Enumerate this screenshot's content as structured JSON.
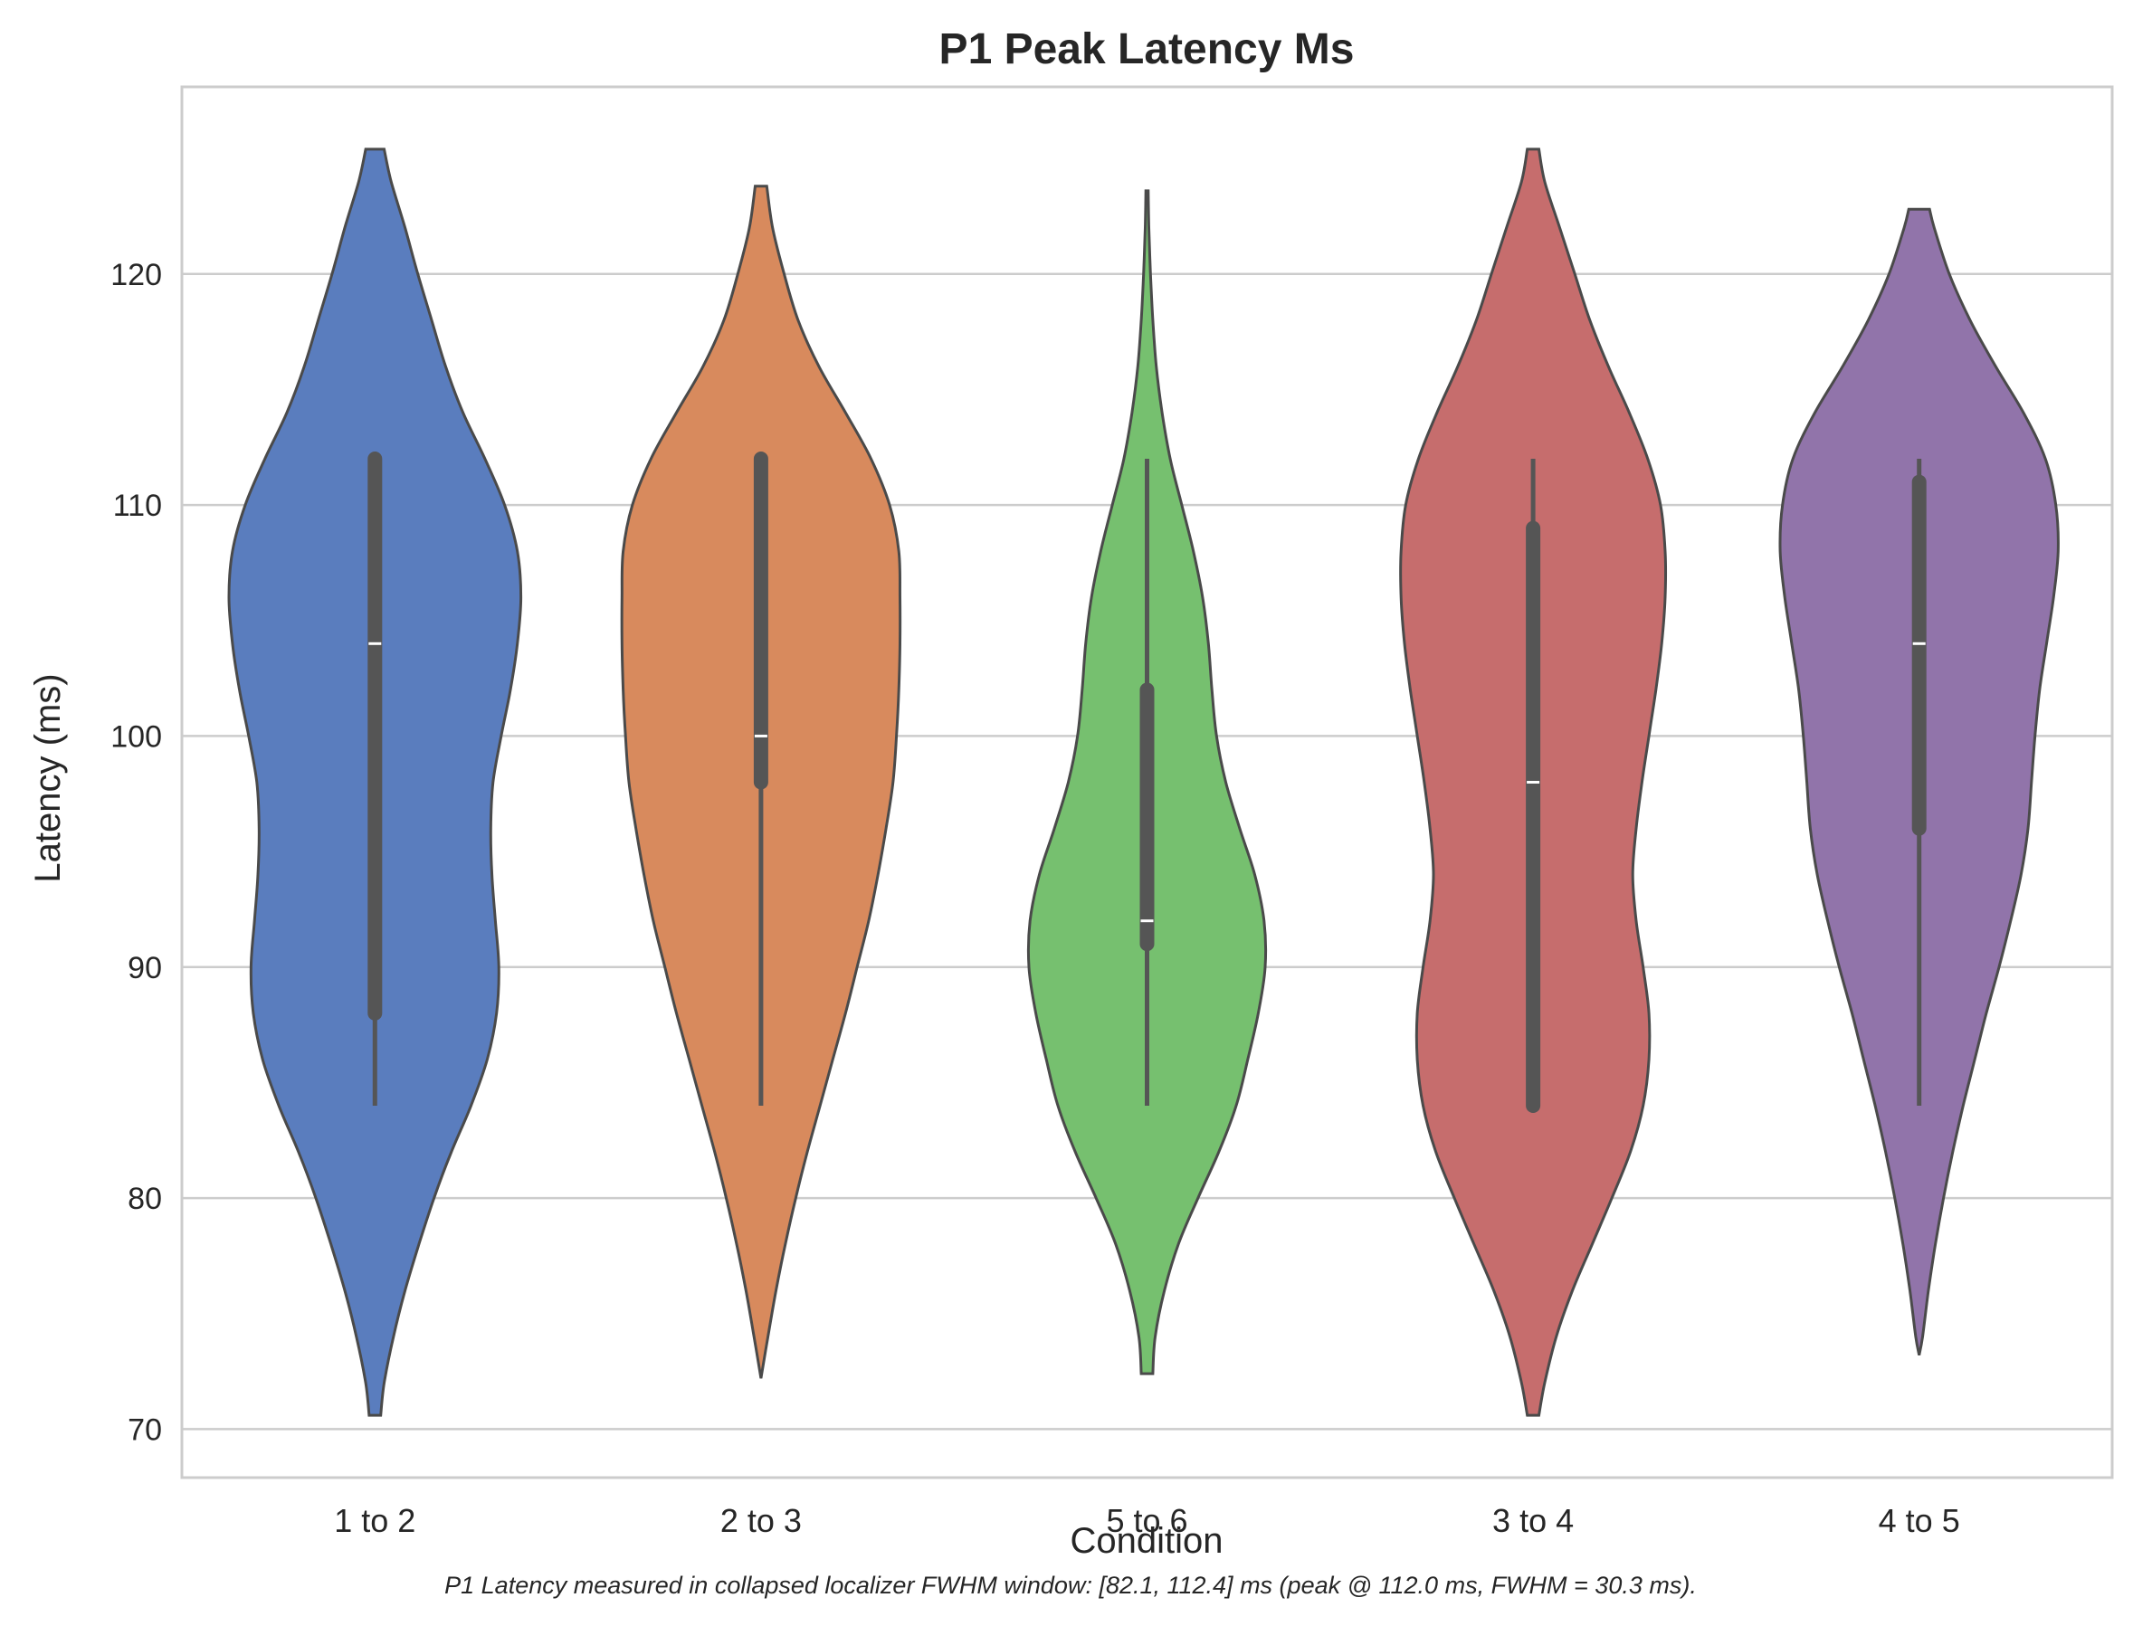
{
  "chart_data": {
    "type": "violin",
    "title": "P1 Peak Latency Ms",
    "xlabel": "Condition",
    "ylabel": "Latency (ms)",
    "caption": "P1 Latency measured in collapsed localizer FWHM window: [82.1, 112.4] ms (peak @ 112.0 ms, FWHM = 30.3 ms).",
    "ylim": [
      67.9,
      128.1
    ],
    "yticks": [
      70,
      80,
      90,
      100,
      110,
      120
    ],
    "grid": true,
    "categories": [
      "1 to 2",
      "2 to 3",
      "5 to 6",
      "3 to 4",
      "4 to 5"
    ],
    "colors": [
      "#5a7dbe",
      "#d88a5d",
      "#76c06f",
      "#c66d6d",
      "#9174aa"
    ],
    "edge_color": "#4a4a4a",
    "box_color": "#555555",
    "median_color": "#ffffff",
    "violins": [
      {
        "category": "1 to 2",
        "min": 84,
        "q1": 88,
        "median": 104,
        "q3": 112,
        "max": 112,
        "range": [
          70.6,
          125.4
        ],
        "density": [
          [
            70.6,
            0.025
          ],
          [
            72,
            0.04
          ],
          [
            74,
            0.08
          ],
          [
            76,
            0.13
          ],
          [
            78,
            0.19
          ],
          [
            80,
            0.255
          ],
          [
            82,
            0.33
          ],
          [
            84,
            0.415
          ],
          [
            86,
            0.485
          ],
          [
            88,
            0.525
          ],
          [
            90,
            0.535
          ],
          [
            92,
            0.52
          ],
          [
            94,
            0.505
          ],
          [
            96,
            0.5
          ],
          [
            98,
            0.51
          ],
          [
            100,
            0.545
          ],
          [
            102,
            0.585
          ],
          [
            104,
            0.615
          ],
          [
            106,
            0.63
          ],
          [
            108,
            0.615
          ],
          [
            110,
            0.56
          ],
          [
            112,
            0.475
          ],
          [
            114,
            0.38
          ],
          [
            116,
            0.305
          ],
          [
            118,
            0.245
          ],
          [
            120,
            0.185
          ],
          [
            122,
            0.13
          ],
          [
            124,
            0.07
          ],
          [
            125.4,
            0.04
          ]
        ]
      },
      {
        "category": "2 to 3",
        "min": 84,
        "q1": 98,
        "median": 100,
        "q3": 112,
        "max": 112,
        "range": [
          72.2,
          123.8
        ],
        "density": [
          [
            72.2,
            0.0
          ],
          [
            74,
            0.03
          ],
          [
            76,
            0.065
          ],
          [
            78,
            0.105
          ],
          [
            80,
            0.15
          ],
          [
            82,
            0.2
          ],
          [
            84,
            0.255
          ],
          [
            86,
            0.31
          ],
          [
            88,
            0.365
          ],
          [
            90,
            0.415
          ],
          [
            92,
            0.465
          ],
          [
            94,
            0.505
          ],
          [
            96,
            0.54
          ],
          [
            98,
            0.57
          ],
          [
            100,
            0.585
          ],
          [
            102,
            0.595
          ],
          [
            104,
            0.6
          ],
          [
            106,
            0.6
          ],
          [
            108,
            0.595
          ],
          [
            110,
            0.555
          ],
          [
            112,
            0.475
          ],
          [
            114,
            0.365
          ],
          [
            116,
            0.25
          ],
          [
            118,
            0.16
          ],
          [
            120,
            0.1
          ],
          [
            122,
            0.05
          ],
          [
            123.8,
            0.025
          ]
        ]
      },
      {
        "category": "5 to 6",
        "min": 84,
        "q1": 91,
        "median": 92,
        "q3": 102,
        "max": 112,
        "range": [
          72.4,
          123.6
        ],
        "density": [
          [
            72.4,
            0.025
          ],
          [
            74,
            0.035
          ],
          [
            76,
            0.075
          ],
          [
            78,
            0.135
          ],
          [
            80,
            0.22
          ],
          [
            82,
            0.31
          ],
          [
            84,
            0.385
          ],
          [
            86,
            0.435
          ],
          [
            88,
            0.48
          ],
          [
            90,
            0.51
          ],
          [
            92,
            0.505
          ],
          [
            94,
            0.465
          ],
          [
            96,
            0.4
          ],
          [
            98,
            0.34
          ],
          [
            100,
            0.3
          ],
          [
            102,
            0.28
          ],
          [
            104,
            0.265
          ],
          [
            106,
            0.24
          ],
          [
            108,
            0.2
          ],
          [
            110,
            0.15
          ],
          [
            112,
            0.1
          ],
          [
            114,
            0.065
          ],
          [
            116,
            0.04
          ],
          [
            118,
            0.025
          ],
          [
            120,
            0.015
          ],
          [
            122,
            0.008
          ],
          [
            123.6,
            0.005
          ]
        ]
      },
      {
        "category": "3 to 4",
        "min": 84,
        "q1": 84,
        "median": 98,
        "q3": 109,
        "max": 112,
        "range": [
          70.6,
          125.4
        ],
        "density": [
          [
            70.6,
            0.025
          ],
          [
            72,
            0.05
          ],
          [
            74,
            0.1
          ],
          [
            76,
            0.17
          ],
          [
            78,
            0.255
          ],
          [
            80,
            0.34
          ],
          [
            82,
            0.42
          ],
          [
            84,
            0.475
          ],
          [
            86,
            0.5
          ],
          [
            88,
            0.5
          ],
          [
            90,
            0.475
          ],
          [
            92,
            0.445
          ],
          [
            94,
            0.43
          ],
          [
            96,
            0.445
          ],
          [
            98,
            0.47
          ],
          [
            100,
            0.5
          ],
          [
            102,
            0.53
          ],
          [
            104,
            0.555
          ],
          [
            106,
            0.57
          ],
          [
            108,
            0.57
          ],
          [
            110,
            0.55
          ],
          [
            112,
            0.495
          ],
          [
            114,
            0.415
          ],
          [
            116,
            0.325
          ],
          [
            118,
            0.245
          ],
          [
            120,
            0.18
          ],
          [
            122,
            0.115
          ],
          [
            124,
            0.05
          ],
          [
            125.4,
            0.025
          ]
        ]
      },
      {
        "category": "4 to 5",
        "min": 84,
        "q1": 96,
        "median": 104,
        "q3": 111,
        "max": 112,
        "range": [
          73.2,
          122.8
        ],
        "density": [
          [
            73.2,
            0.0
          ],
          [
            74,
            0.015
          ],
          [
            76,
            0.04
          ],
          [
            78,
            0.07
          ],
          [
            80,
            0.105
          ],
          [
            82,
            0.145
          ],
          [
            84,
            0.19
          ],
          [
            86,
            0.24
          ],
          [
            88,
            0.29
          ],
          [
            90,
            0.345
          ],
          [
            92,
            0.395
          ],
          [
            94,
            0.44
          ],
          [
            96,
            0.47
          ],
          [
            98,
            0.485
          ],
          [
            100,
            0.5
          ],
          [
            102,
            0.52
          ],
          [
            104,
            0.55
          ],
          [
            106,
            0.58
          ],
          [
            108,
            0.6
          ],
          [
            110,
            0.59
          ],
          [
            112,
            0.545
          ],
          [
            114,
            0.45
          ],
          [
            116,
            0.33
          ],
          [
            118,
            0.22
          ],
          [
            120,
            0.13
          ],
          [
            122,
            0.065
          ],
          [
            122.8,
            0.045
          ]
        ]
      }
    ]
  }
}
